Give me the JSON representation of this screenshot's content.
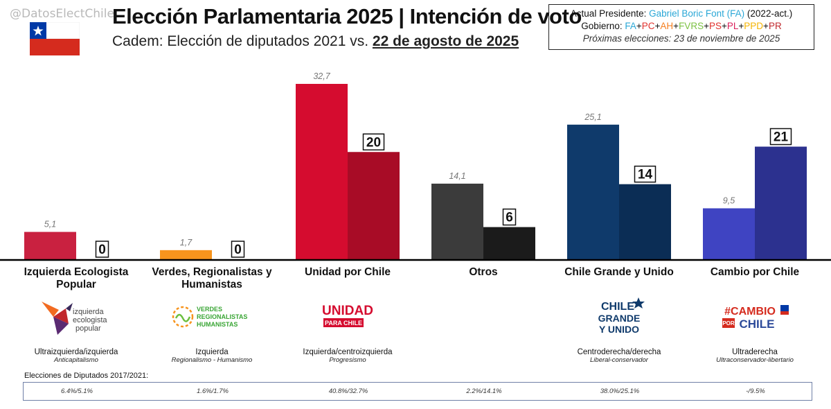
{
  "header": {
    "handle": "@DatosElectChile",
    "title": "Elección Parlamentaria 2025 | Intención de voto",
    "subtitle_prefix": "Cadem: Elección de diputados 2021 vs. ",
    "subtitle_date": "22 de agosto de 2025"
  },
  "info": {
    "president_label": "Actual Presidente: ",
    "president_name": "Gabriel Boric Font (FA)",
    "president_term": " (2022-act.)",
    "gov_label": "Gobierno: ",
    "gov_parties": [
      {
        "name": "FA",
        "color": "#2aa7d6"
      },
      {
        "name": "PC",
        "color": "#e0302c"
      },
      {
        "name": "AH",
        "color": "#f57f20"
      },
      {
        "name": "FVRS",
        "color": "#7cc142"
      },
      {
        "name": "PS",
        "color": "#e0302c"
      },
      {
        "name": "PL",
        "color": "#d91f5a"
      },
      {
        "name": "PPD",
        "color": "#f5b400"
      },
      {
        "name": "PR",
        "color": "#c0282d"
      }
    ],
    "gov_sep": "+",
    "next_elections": "Próximas elecciones: 23 de noviembre de 2025"
  },
  "chart_data": {
    "type": "bar",
    "title": "Elección Parlamentaria 2025 | Intención de voto",
    "series": [
      {
        "name": "Elección de diputados 2021",
        "values": [
          5.1,
          1.7,
          32.7,
          14.1,
          25.1,
          9.5
        ],
        "labels": [
          "5,1",
          "1,7",
          "32,7",
          "14,1",
          "25,1",
          "9,5"
        ]
      },
      {
        "name": "Cadem 22 de agosto de 2025",
        "values": [
          0,
          0,
          20,
          6,
          14,
          21
        ],
        "labels": [
          "0",
          "0",
          "20",
          "6",
          "14",
          "21"
        ]
      }
    ],
    "categories": [
      "Izquierda Ecologista Popular",
      "Verdes, Regionalistas y Humanistas",
      "Unidad por Chile",
      "Otros",
      "Chile Grande y Unido",
      "Cambio por Chile"
    ],
    "colors_2021": [
      "#c92140",
      "#f7941d",
      "#d50c2f",
      "#3b3b3b",
      "#0f3a6b",
      "#3f44c2"
    ],
    "colors_2025": [
      "#c92140",
      "#f7941d",
      "#a80c26",
      "#1b1b1b",
      "#0b2d55",
      "#2c318f"
    ],
    "ylim": [
      0,
      35
    ]
  },
  "parties": [
    {
      "name": "Izquierda Ecologista Popular",
      "ideology": "Ultraizquierda/izquierda",
      "sub": "Anticapitalismo",
      "logo": [
        "izquierda",
        "ecologista",
        "popular"
      ]
    },
    {
      "name": "Verdes, Regionalistas y Humanistas",
      "ideology": "Izquierda",
      "sub": "Regionalismo - Humanismo",
      "logo": [
        "VERDES",
        "REGIONALISTAS",
        "HUMANISTAS"
      ]
    },
    {
      "name": "Unidad por Chile",
      "ideology": "Izquierda/centroizquierda",
      "sub": "Progresismo",
      "logo": [
        "UNIDAD",
        "PARA CHILE"
      ]
    },
    {
      "name": "Otros",
      "ideology": "",
      "sub": "",
      "logo": []
    },
    {
      "name": "Chile Grande y Unido",
      "ideology": "Centroderecha/derecha",
      "sub": "Liberal-conservador",
      "logo": [
        "CHILE",
        "GRANDE",
        "Y UNIDO"
      ]
    },
    {
      "name": "Cambio por Chile",
      "ideology": "Ultraderecha",
      "sub": "Ultraconservador-libertario",
      "logo": [
        "#CAMBIO",
        "POR",
        "CHILE"
      ]
    }
  ],
  "history": {
    "label": "Elecciones de Diputados 2017/2021:",
    "values": [
      "6.4%/5.1%",
      "1.6%/1.7%",
      "40.8%/32.7%",
      "2.2%/14.1%",
      "38.0%/25.1%",
      "-/9.5%"
    ]
  }
}
